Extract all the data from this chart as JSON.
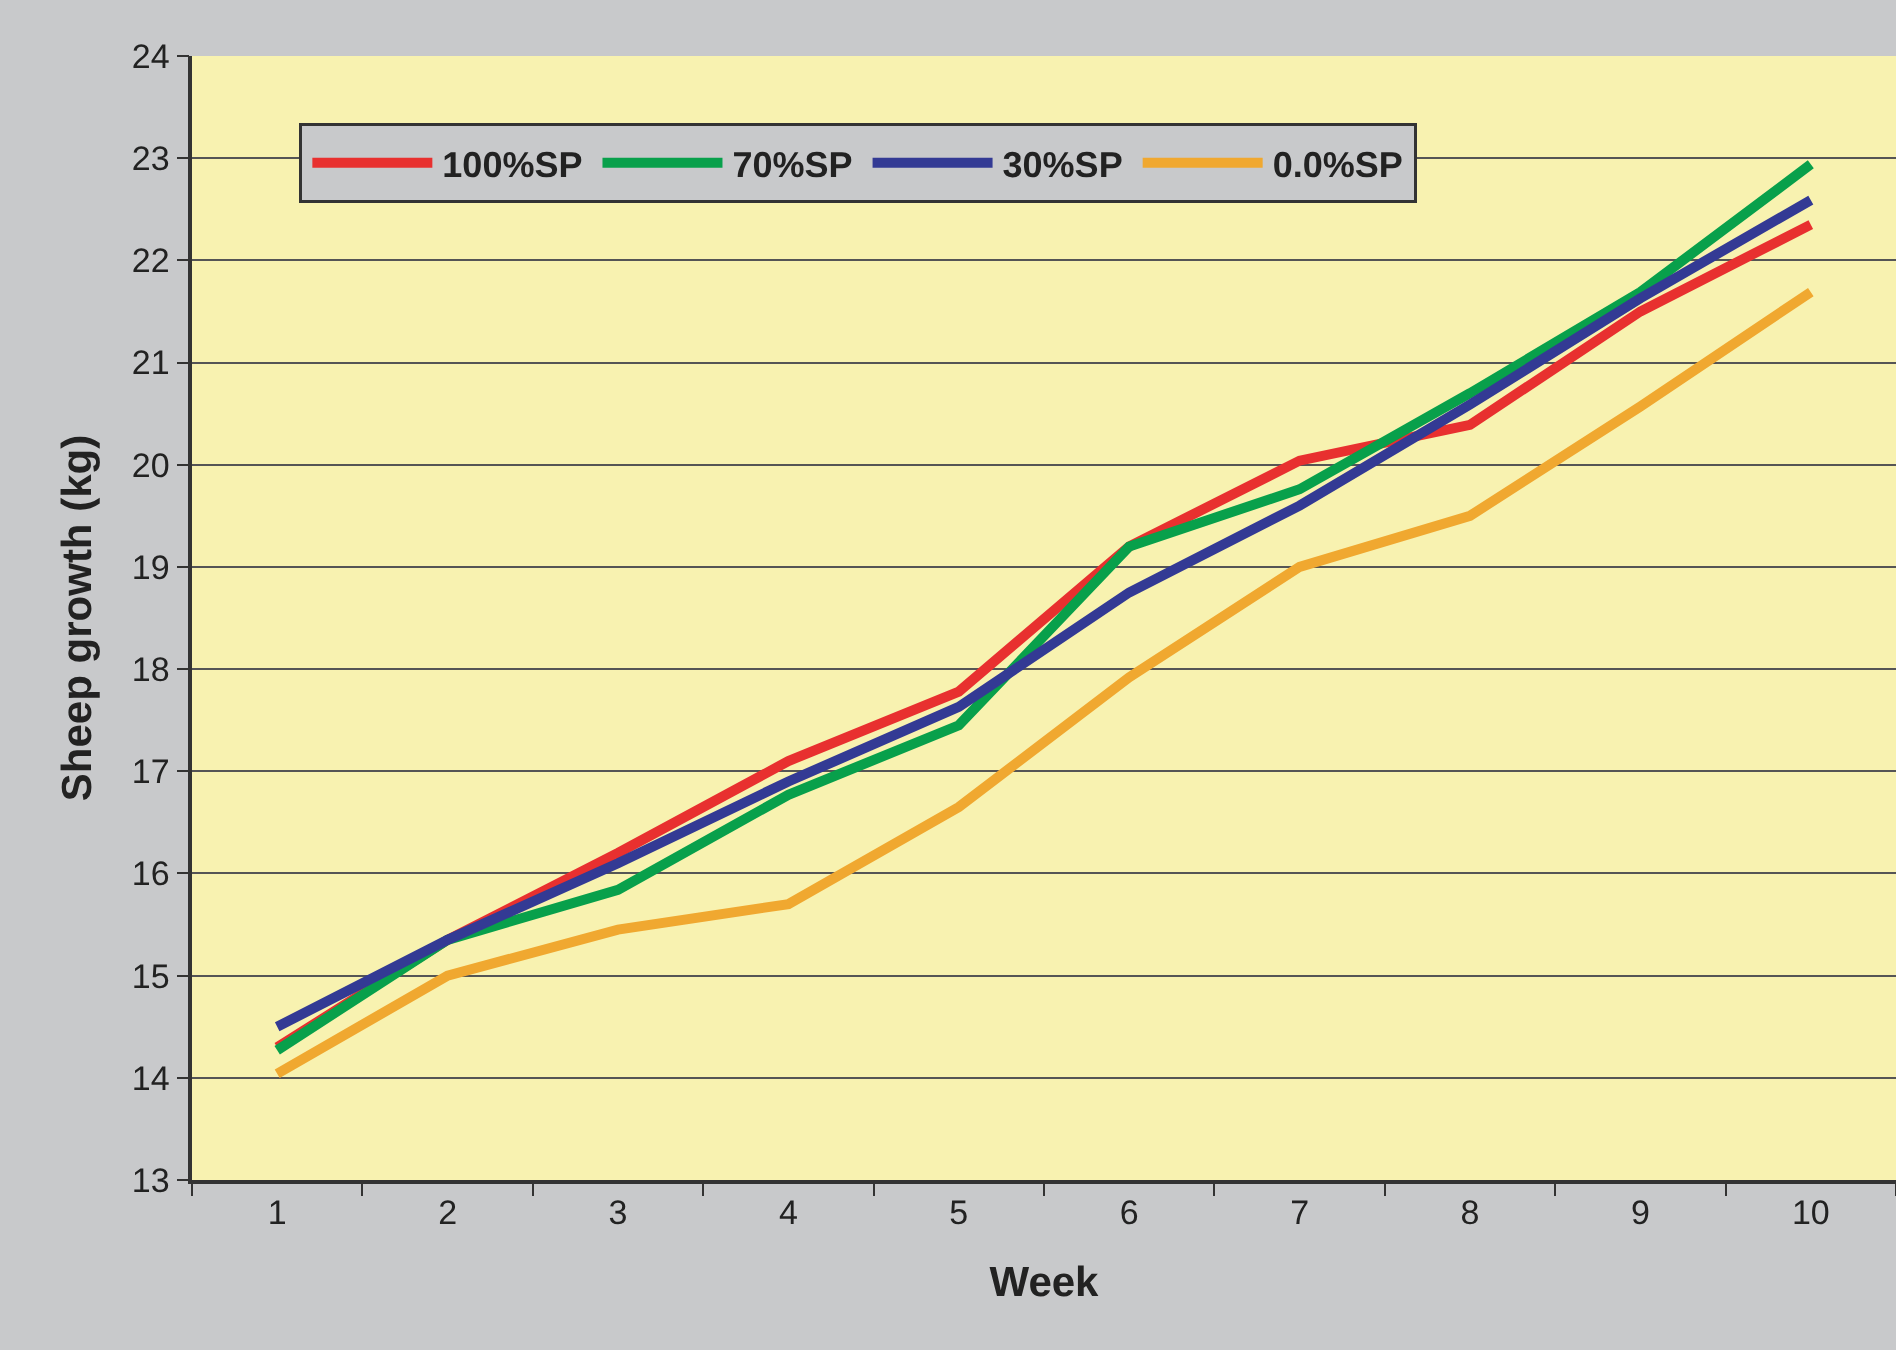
{
  "chart_data": {
    "type": "line",
    "xlabel": "Week",
    "ylabel": "Sheep growth (kg)",
    "categories": [
      "1",
      "2",
      "3",
      "4",
      "5",
      "6",
      "7",
      "8",
      "9",
      "10"
    ],
    "ylim": [
      13,
      24
    ],
    "yticks": [
      13,
      14,
      15,
      16,
      17,
      18,
      19,
      20,
      21,
      22,
      23,
      24
    ],
    "grid": "y",
    "legend": "top left",
    "series": [
      {
        "name": "100%SP",
        "color": "#e8302f",
        "values": [
          14.3,
          15.35,
          16.2,
          17.1,
          17.78,
          19.2,
          20.04,
          20.39,
          21.5,
          22.35
        ]
      },
      {
        "name": "70%SP",
        "color": "#08a04b",
        "values": [
          14.27,
          15.35,
          15.84,
          16.77,
          17.45,
          19.2,
          19.76,
          20.7,
          21.69,
          22.94
        ]
      },
      {
        "name": "30%SP",
        "color": "#333a94",
        "values": [
          14.5,
          15.35,
          16.1,
          16.9,
          17.63,
          18.75,
          19.6,
          20.59,
          21.63,
          22.59
        ]
      },
      {
        "name": "0.0%SP",
        "color": "#f0a830",
        "values": [
          14.04,
          15.0,
          15.45,
          15.7,
          16.65,
          17.92,
          19.0,
          19.5,
          20.57,
          21.69
        ]
      }
    ]
  }
}
